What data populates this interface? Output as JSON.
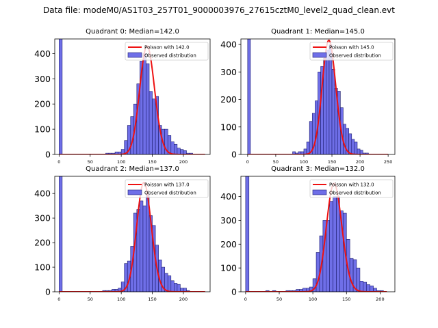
{
  "figure_title": "Data file: modeM0/AS1T03_257T01_9000003976_27615cztM0_level2_quad_clean.evt",
  "colors": {
    "bar_fill": "#6f6fe8",
    "bar_edge": "#1c1c6e",
    "poisson_line": "#ee1111"
  },
  "chart_data": [
    {
      "type": "bar",
      "title": "Quadrant 0: Median=142.0",
      "xlim": [
        -7,
        243
      ],
      "ylim": [
        0,
        458
      ],
      "xticks": [
        0,
        50,
        100,
        150,
        200
      ],
      "yticks": [
        0,
        100,
        200,
        300,
        400
      ],
      "legend": [
        "Poisson with 142.0",
        "Observed distribution"
      ],
      "legend_position": "top-right",
      "bin_width": 5,
      "bins": [
        [
          0,
          5,
          460
        ],
        [
          75,
          80,
          5
        ],
        [
          80,
          85,
          5
        ],
        [
          85,
          90,
          5
        ],
        [
          90,
          95,
          10
        ],
        [
          95,
          100,
          10
        ],
        [
          100,
          105,
          20
        ],
        [
          105,
          110,
          55
        ],
        [
          110,
          115,
          115
        ],
        [
          115,
          120,
          150
        ],
        [
          120,
          125,
          200
        ],
        [
          125,
          130,
          280
        ],
        [
          130,
          135,
          370
        ],
        [
          135,
          140,
          400
        ],
        [
          140,
          145,
          360
        ],
        [
          145,
          150,
          250
        ],
        [
          150,
          155,
          220
        ],
        [
          155,
          160,
          230
        ],
        [
          160,
          165,
          115
        ],
        [
          165,
          170,
          100
        ],
        [
          170,
          175,
          100
        ],
        [
          175,
          180,
          75
        ],
        [
          180,
          185,
          50
        ],
        [
          185,
          190,
          40
        ],
        [
          190,
          195,
          25
        ],
        [
          195,
          200,
          20
        ],
        [
          200,
          205,
          15
        ],
        [
          205,
          210,
          5
        ],
        [
          210,
          215,
          5
        ]
      ],
      "poisson_mean": 142.0,
      "poisson_peak": 430,
      "poisson_x_range": [
        0,
        235
      ]
    },
    {
      "type": "bar",
      "title": "Quadrant 1: Median=145.0",
      "xlim": [
        -12,
        262
      ],
      "ylim": [
        0,
        420
      ],
      "xticks": [
        0,
        50,
        100,
        150,
        200,
        250
      ],
      "yticks": [
        0,
        100,
        200,
        300,
        400
      ],
      "legend": [
        "Poisson with 145.0",
        "Observed distribution"
      ],
      "legend_position": "top-right",
      "bin_width": 5,
      "bins": [
        [
          0,
          5,
          420
        ],
        [
          80,
          85,
          10
        ],
        [
          85,
          90,
          5
        ],
        [
          90,
          95,
          10
        ],
        [
          95,
          100,
          10
        ],
        [
          100,
          105,
          20
        ],
        [
          105,
          110,
          45
        ],
        [
          110,
          115,
          120
        ],
        [
          115,
          120,
          150
        ],
        [
          120,
          125,
          195
        ],
        [
          125,
          130,
          300
        ],
        [
          130,
          135,
          320
        ],
        [
          135,
          140,
          350
        ],
        [
          140,
          145,
          380
        ],
        [
          145,
          150,
          400
        ],
        [
          150,
          155,
          310
        ],
        [
          155,
          160,
          240
        ],
        [
          160,
          165,
          230
        ],
        [
          165,
          170,
          170
        ],
        [
          170,
          175,
          110
        ],
        [
          175,
          180,
          95
        ],
        [
          180,
          185,
          75
        ],
        [
          185,
          190,
          55
        ],
        [
          190,
          195,
          45
        ],
        [
          195,
          200,
          20
        ],
        [
          200,
          205,
          15
        ],
        [
          205,
          210,
          5
        ],
        [
          210,
          215,
          5
        ]
      ],
      "poisson_mean": 145.0,
      "poisson_peak": 415,
      "poisson_x_range": [
        0,
        250
      ]
    },
    {
      "type": "bar",
      "title": "Quadrant 2: Median=137.0",
      "xlim": [
        -7,
        243
      ],
      "ylim": [
        0,
        470
      ],
      "xticks": [
        0,
        50,
        100,
        150,
        200
      ],
      "yticks": [
        0,
        100,
        200,
        300,
        400
      ],
      "legend": [
        "Poisson with 137.0",
        "Observed distribution"
      ],
      "legend_position": "top-right",
      "bin_width": 5,
      "bins": [
        [
          0,
          5,
          470
        ],
        [
          70,
          75,
          5
        ],
        [
          75,
          80,
          5
        ],
        [
          80,
          85,
          5
        ],
        [
          85,
          90,
          10
        ],
        [
          90,
          95,
          10
        ],
        [
          95,
          100,
          15
        ],
        [
          100,
          105,
          40
        ],
        [
          105,
          110,
          115
        ],
        [
          110,
          115,
          125
        ],
        [
          115,
          120,
          185
        ],
        [
          120,
          125,
          320
        ],
        [
          125,
          130,
          335
        ],
        [
          130,
          135,
          370
        ],
        [
          135,
          140,
          350
        ],
        [
          140,
          145,
          400
        ],
        [
          145,
          150,
          310
        ],
        [
          150,
          155,
          270
        ],
        [
          155,
          160,
          190
        ],
        [
          160,
          165,
          130
        ],
        [
          165,
          170,
          100
        ],
        [
          170,
          175,
          75
        ],
        [
          175,
          180,
          65
        ],
        [
          180,
          185,
          45
        ],
        [
          185,
          190,
          35
        ],
        [
          190,
          195,
          30
        ],
        [
          195,
          200,
          15
        ],
        [
          200,
          205,
          15
        ],
        [
          205,
          210,
          5
        ]
      ],
      "poisson_mean": 137.0,
      "poisson_peak": 445,
      "poisson_x_range": [
        0,
        235
      ]
    },
    {
      "type": "bar",
      "title": "Quadrant 3: Median=132.0",
      "xlim": [
        -7,
        222
      ],
      "ylim": [
        0,
        485
      ],
      "xticks": [
        0,
        50,
        100,
        150,
        200
      ],
      "yticks": [
        0,
        100,
        200,
        300,
        400
      ],
      "legend": [
        "Poisson with 132.0",
        "Observed distribution"
      ],
      "legend_position": "top-right",
      "bin_width": 5,
      "bins": [
        [
          0,
          5,
          485
        ],
        [
          30,
          35,
          5
        ],
        [
          40,
          45,
          5
        ],
        [
          60,
          65,
          5
        ],
        [
          65,
          70,
          5
        ],
        [
          70,
          75,
          5
        ],
        [
          75,
          80,
          10
        ],
        [
          80,
          85,
          10
        ],
        [
          85,
          90,
          15
        ],
        [
          90,
          95,
          15
        ],
        [
          95,
          100,
          20
        ],
        [
          100,
          105,
          55
        ],
        [
          105,
          110,
          165
        ],
        [
          110,
          115,
          235
        ],
        [
          115,
          120,
          300
        ],
        [
          120,
          125,
          300
        ],
        [
          125,
          130,
          380
        ],
        [
          130,
          135,
          400
        ],
        [
          135,
          140,
          400
        ],
        [
          140,
          145,
          340
        ],
        [
          145,
          150,
          330
        ],
        [
          150,
          155,
          220
        ],
        [
          155,
          160,
          140
        ],
        [
          160,
          165,
          135
        ],
        [
          165,
          170,
          100
        ],
        [
          170,
          175,
          45
        ],
        [
          175,
          180,
          40
        ],
        [
          180,
          185,
          30
        ],
        [
          185,
          190,
          25
        ],
        [
          190,
          195,
          15
        ],
        [
          195,
          200,
          5
        ],
        [
          200,
          205,
          5
        ]
      ],
      "poisson_mean": 132.0,
      "poisson_peak": 455,
      "poisson_x_range": [
        0,
        210
      ]
    }
  ]
}
